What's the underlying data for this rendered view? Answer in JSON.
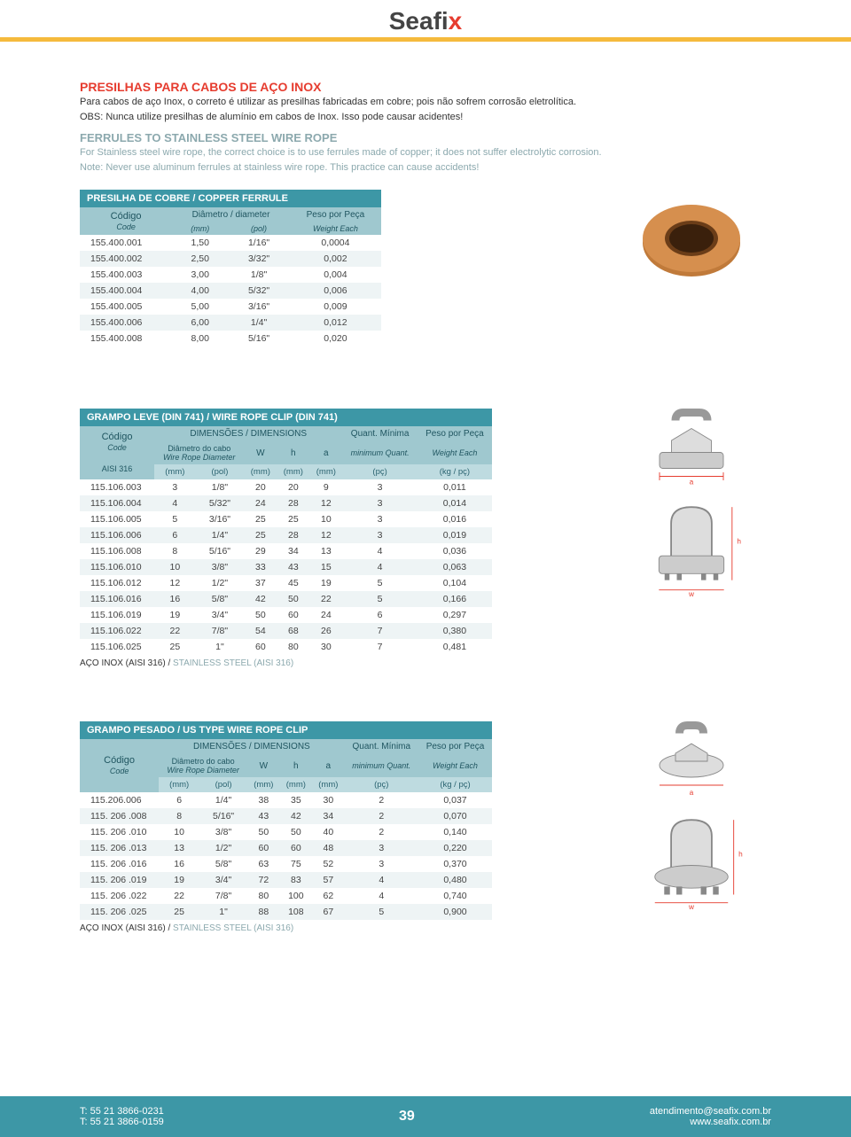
{
  "logo": {
    "text": "Seafi",
    "accent": "x"
  },
  "pageNumber": "39",
  "footer": {
    "tel1": "T: 55 21 3866-0231",
    "tel2": "T: 55 21 3866-0159",
    "email": "atendimento@seafix.com.br",
    "site": "www.seafix.com.br"
  },
  "intro": {
    "pt_title": "PRESILHAS PARA CABOS DE AÇO INOX",
    "pt_p1": "Para cabos de aço Inox, o correto é utilizar as presilhas fabricadas em cobre; pois não sofrem corrosão eletrolítica.",
    "pt_p2": "OBS: Nunca utilize presilhas de alumínio em cabos de Inox. Isso pode causar acidentes!",
    "en_title": "FERRULES TO STAINLESS STEEL WIRE ROPE",
    "en_p1": "For Stainless steel wire rope, the correct choice is to use ferrules made of copper; it does not suffer electrolytic corrosion.",
    "en_p2": "Note: Never use aluminum ferrules at stainless wire rope. This practice can cause accidents!"
  },
  "table1": {
    "title": "PRESILHA DE COBRE / COPPER FERRULE",
    "h_codigo": "Código",
    "h_code": "Code",
    "h_diam": "Diâmetro / diameter",
    "h_peso": "Peso por Peça",
    "h_weight": "Weight Each",
    "u_mm": "(mm)",
    "u_pol": "(pol)",
    "rows": [
      [
        "155.400.001",
        "1,50",
        "1/16\"",
        "0,0004"
      ],
      [
        "155.400.002",
        "2,50",
        "3/32\"",
        "0,002"
      ],
      [
        "155.400.003",
        "3,00",
        "1/8\"",
        "0,004"
      ],
      [
        "155.400.004",
        "4,00",
        "5/32\"",
        "0,006"
      ],
      [
        "155.400.005",
        "5,00",
        "3/16\"",
        "0,009"
      ],
      [
        "155.400.006",
        "6,00",
        "1/4\"",
        "0,012"
      ],
      [
        "155.400.008",
        "8,00",
        "5/16\"",
        "0,020"
      ]
    ],
    "colors": {
      "ferrule_fill": "#c07a3a",
      "ferrule_dark": "#8f5524"
    }
  },
  "table2": {
    "title": "GRAMPO LEVE (DIN 741) / WIRE ROPE CLIP (DIN 741)",
    "h_codigo": "Código",
    "h_code": "Code",
    "h_dim": "DIMENSÕES / DIMENSIONS",
    "h_quant": "Quant. Mínima",
    "h_quant_en": "minimum Quant.",
    "h_peso": "Peso por Peça",
    "h_weight": "Weight Each",
    "h_diamcabo": "Diâmetro do cabo",
    "h_diamcabo_en": "Wire Rope Diameter",
    "h_W": "W",
    "h_h": "h",
    "h_a": "a",
    "aisi": "AISI 316",
    "u_mm": "(mm)",
    "u_pol": "(pol)",
    "u_pc": "(pç)",
    "u_kg": "(kg / pç)",
    "rows": [
      [
        "115.106.003",
        "3",
        "1/8\"",
        "20",
        "20",
        "9",
        "3",
        "0,011"
      ],
      [
        "115.106.004",
        "4",
        "5/32\"",
        "24",
        "28",
        "12",
        "3",
        "0,014"
      ],
      [
        "115.106.005",
        "5",
        "3/16\"",
        "25",
        "25",
        "10",
        "3",
        "0,016"
      ],
      [
        "115.106.006",
        "6",
        "1/4\"",
        "25",
        "28",
        "12",
        "3",
        "0,019"
      ],
      [
        "115.106.008",
        "8",
        "5/16\"",
        "29",
        "34",
        "13",
        "4",
        "0,036"
      ],
      [
        "115.106.010",
        "10",
        "3/8\"",
        "33",
        "43",
        "15",
        "4",
        "0,063"
      ],
      [
        "115.106.012",
        "12",
        "1/2\"",
        "37",
        "45",
        "19",
        "5",
        "0,104"
      ],
      [
        "115.106.016",
        "16",
        "5/8\"",
        "42",
        "50",
        "22",
        "5",
        "0,166"
      ],
      [
        "115.106.019",
        "19",
        "3/4\"",
        "50",
        "60",
        "24",
        "6",
        "0,297"
      ],
      [
        "115.106.022",
        "22",
        "7/8\"",
        "54",
        "68",
        "26",
        "7",
        "0,380"
      ],
      [
        "115.106.025",
        "25",
        "1\"",
        "60",
        "80",
        "30",
        "7",
        "0,481"
      ]
    ],
    "footnote_pt": "AÇO INOX  (AISI 316)  /  ",
    "footnote_en": "STAINLESS STEEL (AISI 316)"
  },
  "table3": {
    "title": "GRAMPO PESADO / US TYPE WIRE ROPE CLIP",
    "h_codigo": "Código",
    "h_code": "Code",
    "h_dim": "DIMENSÕES / DIMENSIONS",
    "h_quant": "Quant. Mínima",
    "h_quant_en": "minimum Quant.",
    "h_peso": "Peso por Peça",
    "h_weight": "Weight Each",
    "h_diamcabo": "Diâmetro do cabo",
    "h_diamcabo_en": "Wire Rope Diameter",
    "h_W": "W",
    "h_h": "h",
    "h_a": "a",
    "u_mm": "(mm)",
    "u_pol": "(pol)",
    "u_pc": "(pç)",
    "u_kg": "(kg / pç)",
    "rows": [
      [
        "115.206.006",
        "6",
        "1/4\"",
        "38",
        "35",
        "30",
        "2",
        "0,037"
      ],
      [
        "115. 206 .008",
        "8",
        "5/16\"",
        "43",
        "42",
        "34",
        "2",
        "0,070"
      ],
      [
        "115. 206 .010",
        "10",
        "3/8\"",
        "50",
        "50",
        "40",
        "2",
        "0,140"
      ],
      [
        "115. 206 .013",
        "13",
        "1/2\"",
        "60",
        "60",
        "48",
        "3",
        "0,220"
      ],
      [
        "115. 206 .016",
        "16",
        "5/8\"",
        "63",
        "75",
        "52",
        "3",
        "0,370"
      ],
      [
        "115. 206 .019",
        "19",
        "3/4\"",
        "72",
        "83",
        "57",
        "4",
        "0,480"
      ],
      [
        "115. 206 .022",
        "22",
        "7/8\"",
        "80",
        "100",
        "62",
        "4",
        "0,740"
      ],
      [
        "115. 206 .025",
        "25",
        "1\"",
        "88",
        "108",
        "67",
        "5",
        "0,900"
      ]
    ],
    "footnote_pt": "AÇO INOX  (AISI 316)  /  ",
    "footnote_en": "STAINLESS STEEL (AISI 316)"
  },
  "diagram_labels": {
    "a": "a",
    "w": "w",
    "h": "h"
  },
  "diagram_color": "#e63c2f"
}
